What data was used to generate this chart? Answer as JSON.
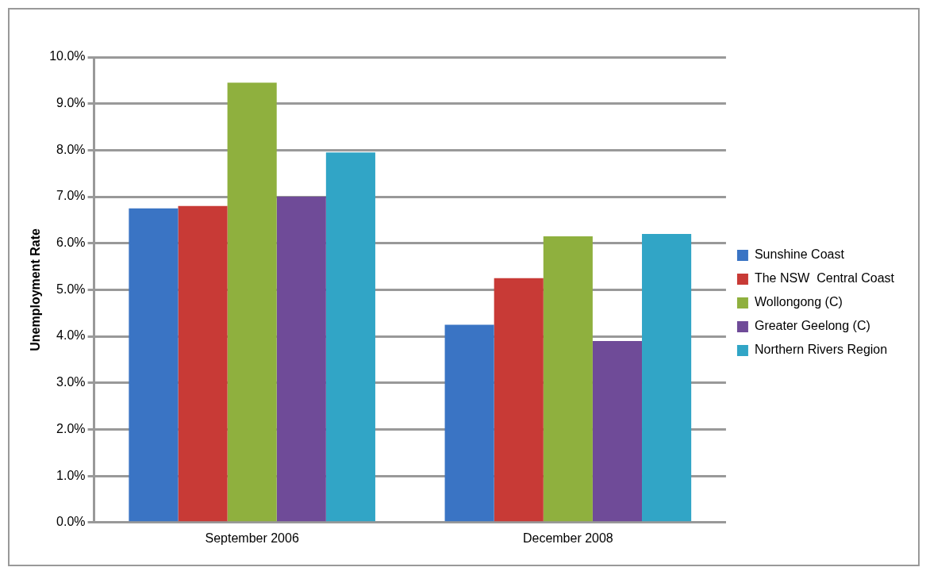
{
  "chart_data": {
    "type": "bar",
    "ylabel": "Unemployment Rate",
    "categories": [
      "September 2006",
      "December 2008"
    ],
    "series": [
      {
        "name": "Sunshine Coast",
        "color": "#3a74c4",
        "values": [
          6.75,
          4.25
        ]
      },
      {
        "name": "The NSW  Central Coast",
        "color": "#c83a36",
        "values": [
          6.8,
          5.25
        ]
      },
      {
        "name": "Wollongong (C)",
        "color": "#8fb03e",
        "values": [
          9.45,
          6.15
        ]
      },
      {
        "name": "Greater Geelong (C)",
        "color": "#6f4b98",
        "values": [
          7.0,
          3.9
        ]
      },
      {
        "name": "Northern Rivers Region",
        "color": "#31a5c6",
        "values": [
          7.95,
          6.2
        ]
      }
    ],
    "ylim": [
      0,
      10
    ],
    "yticks": [
      {
        "value": 0,
        "label": "0.0%"
      },
      {
        "value": 1,
        "label": "1.0%"
      },
      {
        "value": 2,
        "label": "2.0%"
      },
      {
        "value": 3,
        "label": "3.0%"
      },
      {
        "value": 4,
        "label": "4.0%"
      },
      {
        "value": 5,
        "label": "5.0%"
      },
      {
        "value": 6,
        "label": "6.0%"
      },
      {
        "value": 7,
        "label": "7.0%"
      },
      {
        "value": 8,
        "label": "8.0%"
      },
      {
        "value": 9,
        "label": "9.0%"
      },
      {
        "value": 10,
        "label": "10.0%"
      }
    ],
    "grid": "y",
    "legend": "right"
  }
}
